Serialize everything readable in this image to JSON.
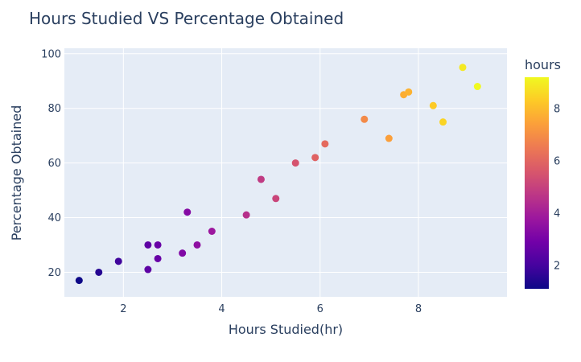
{
  "chart_data": {
    "type": "scatter",
    "title": "Hours Studied VS Percentage Obtained",
    "xlabel": "Hours Studied(hr)",
    "ylabel": "Percentage Obtained",
    "xlim": [
      0.8,
      9.8
    ],
    "ylim": [
      11,
      102
    ],
    "x_ticks": [
      2,
      4,
      6,
      8
    ],
    "y_ticks": [
      20,
      40,
      60,
      80,
      100
    ],
    "grid": true,
    "legend": "none",
    "colorbar": {
      "title": "hours",
      "range": [
        1.1,
        9.2
      ],
      "ticks": [
        2,
        4,
        6,
        8
      ],
      "colorscale": [
        "#0d0887",
        "#46039f",
        "#7201a8",
        "#9c179e",
        "#bd3786",
        "#d8576b",
        "#ed7953",
        "#fb9f3a",
        "#fdca26",
        "#f0f921"
      ]
    },
    "points": [
      {
        "x": 2.5,
        "y": 21
      },
      {
        "x": 5.1,
        "y": 47
      },
      {
        "x": 3.2,
        "y": 27
      },
      {
        "x": 8.5,
        "y": 75
      },
      {
        "x": 3.5,
        "y": 30
      },
      {
        "x": 1.5,
        "y": 20
      },
      {
        "x": 9.2,
        "y": 88
      },
      {
        "x": 5.5,
        "y": 60
      },
      {
        "x": 8.3,
        "y": 81
      },
      {
        "x": 2.7,
        "y": 25
      },
      {
        "x": 7.7,
        "y": 85
      },
      {
        "x": 5.9,
        "y": 62
      },
      {
        "x": 4.5,
        "y": 41
      },
      {
        "x": 3.3,
        "y": 42
      },
      {
        "x": 1.1,
        "y": 17
      },
      {
        "x": 8.9,
        "y": 95
      },
      {
        "x": 2.5,
        "y": 30
      },
      {
        "x": 1.9,
        "y": 24
      },
      {
        "x": 6.1,
        "y": 67
      },
      {
        "x": 7.4,
        "y": 69
      },
      {
        "x": 2.7,
        "y": 30
      },
      {
        "x": 4.8,
        "y": 54
      },
      {
        "x": 3.8,
        "y": 35
      },
      {
        "x": 6.9,
        "y": 76
      },
      {
        "x": 7.8,
        "y": 86
      }
    ]
  }
}
